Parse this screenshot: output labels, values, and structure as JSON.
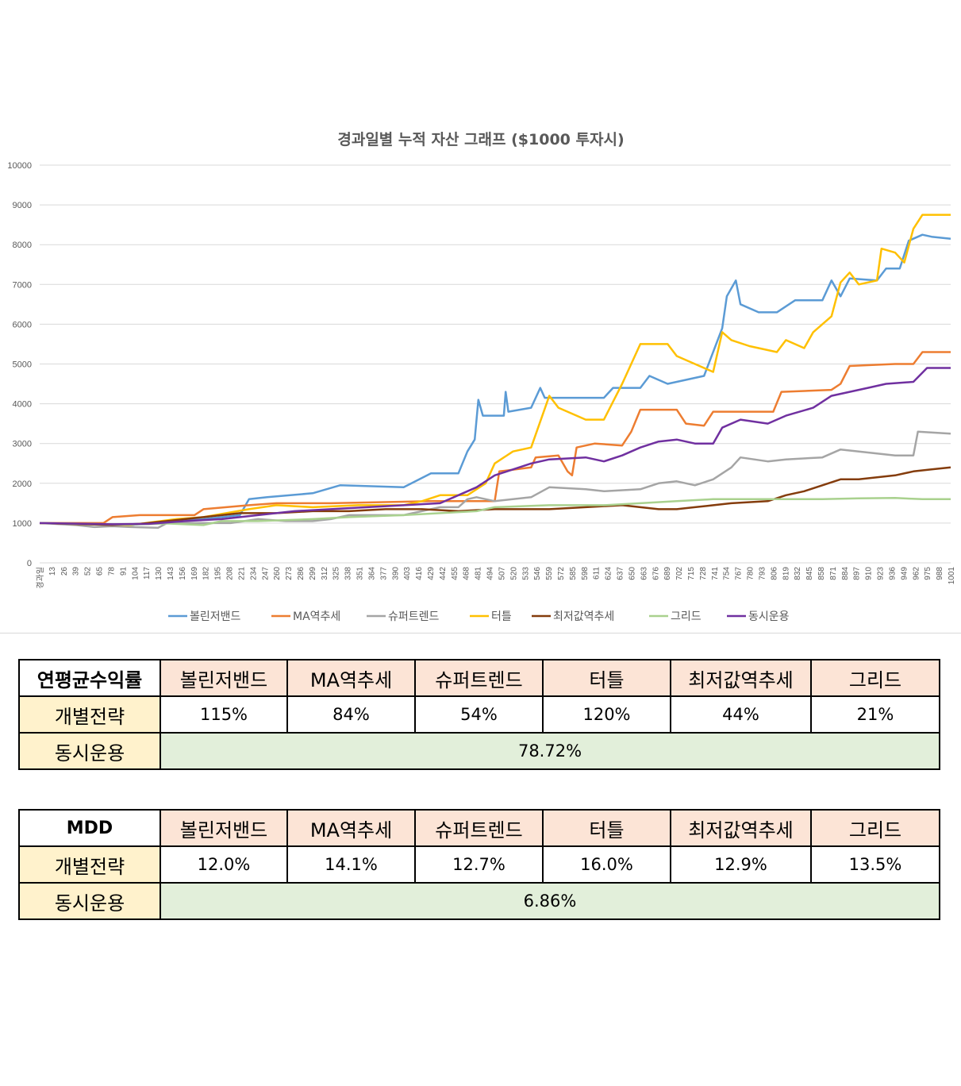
{
  "chart_data": {
    "type": "line",
    "title": "경과일별 누적 자산 그래프 ($1000 투자시)",
    "xlabel": "",
    "ylabel": "",
    "ylim": [
      0,
      10000
    ],
    "yticks": [
      0,
      1000,
      2000,
      3000,
      4000,
      5000,
      6000,
      7000,
      8000,
      9000,
      10000
    ],
    "xlim": [
      0,
      1001
    ],
    "xticks_first_label": "경과일",
    "xticks": [
      13,
      26,
      39,
      52,
      65,
      78,
      91,
      104,
      117,
      130,
      143,
      156,
      169,
      182,
      195,
      208,
      221,
      234,
      247,
      260,
      273,
      286,
      299,
      312,
      325,
      338,
      351,
      364,
      377,
      390,
      403,
      416,
      429,
      442,
      455,
      468,
      481,
      494,
      507,
      520,
      533,
      546,
      559,
      572,
      585,
      598,
      611,
      624,
      637,
      650,
      663,
      676,
      689,
      702,
      715,
      728,
      741,
      754,
      767,
      780,
      793,
      806,
      819,
      832,
      845,
      858,
      871,
      884,
      897,
      910,
      923,
      936,
      949,
      962,
      975,
      988,
      1001
    ],
    "grid": true,
    "legend_position": "bottom",
    "series": [
      {
        "name": "볼린저밴드",
        "color": "#5b9bd5",
        "points": [
          [
            0,
            1000
          ],
          [
            60,
            980
          ],
          [
            100,
            950
          ],
          [
            140,
            1050
          ],
          [
            180,
            1100
          ],
          [
            220,
            1200
          ],
          [
            230,
            1600
          ],
          [
            250,
            1650
          ],
          [
            300,
            1750
          ],
          [
            330,
            1950
          ],
          [
            400,
            1900
          ],
          [
            430,
            2250
          ],
          [
            460,
            2250
          ],
          [
            470,
            2800
          ],
          [
            478,
            3100
          ],
          [
            482,
            4100
          ],
          [
            487,
            3700
          ],
          [
            510,
            3700
          ],
          [
            512,
            4300
          ],
          [
            515,
            3800
          ],
          [
            540,
            3900
          ],
          [
            550,
            4400
          ],
          [
            555,
            4150
          ],
          [
            620,
            4150
          ],
          [
            630,
            4400
          ],
          [
            660,
            4400
          ],
          [
            670,
            4700
          ],
          [
            690,
            4500
          ],
          [
            730,
            4700
          ],
          [
            750,
            5900
          ],
          [
            755,
            6700
          ],
          [
            765,
            7100
          ],
          [
            770,
            6500
          ],
          [
            790,
            6300
          ],
          [
            810,
            6300
          ],
          [
            830,
            6600
          ],
          [
            860,
            6600
          ],
          [
            870,
            7100
          ],
          [
            880,
            6700
          ],
          [
            890,
            7150
          ],
          [
            920,
            7100
          ],
          [
            930,
            7400
          ],
          [
            945,
            7400
          ],
          [
            955,
            8100
          ],
          [
            970,
            8250
          ],
          [
            980,
            8200
          ],
          [
            1001,
            8150
          ]
        ]
      },
      {
        "name": "MA역추세",
        "color": "#ed7d31",
        "points": [
          [
            0,
            1000
          ],
          [
            70,
            1000
          ],
          [
            80,
            1150
          ],
          [
            110,
            1200
          ],
          [
            170,
            1200
          ],
          [
            180,
            1350
          ],
          [
            230,
            1450
          ],
          [
            260,
            1500
          ],
          [
            300,
            1500
          ],
          [
            320,
            1500
          ],
          [
            430,
            1550
          ],
          [
            500,
            1550
          ],
          [
            505,
            2300
          ],
          [
            540,
            2400
          ],
          [
            545,
            2650
          ],
          [
            570,
            2700
          ],
          [
            580,
            2300
          ],
          [
            585,
            2200
          ],
          [
            590,
            2900
          ],
          [
            610,
            3000
          ],
          [
            640,
            2950
          ],
          [
            650,
            3300
          ],
          [
            660,
            3850
          ],
          [
            700,
            3850
          ],
          [
            710,
            3500
          ],
          [
            730,
            3450
          ],
          [
            740,
            3800
          ],
          [
            790,
            3800
          ],
          [
            806,
            3800
          ],
          [
            815,
            4300
          ],
          [
            870,
            4350
          ],
          [
            880,
            4500
          ],
          [
            890,
            4950
          ],
          [
            940,
            5000
          ],
          [
            960,
            5000
          ],
          [
            970,
            5300
          ],
          [
            1001,
            5300
          ]
        ]
      },
      {
        "name": "슈퍼트렌드",
        "color": "#a5a5a5",
        "points": [
          [
            0,
            1000
          ],
          [
            40,
            950
          ],
          [
            60,
            900
          ],
          [
            80,
            920
          ],
          [
            100,
            900
          ],
          [
            130,
            880
          ],
          [
            140,
            1000
          ],
          [
            180,
            1000
          ],
          [
            210,
            1000
          ],
          [
            240,
            1100
          ],
          [
            270,
            1050
          ],
          [
            300,
            1050
          ],
          [
            320,
            1100
          ],
          [
            340,
            1200
          ],
          [
            400,
            1200
          ],
          [
            440,
            1400
          ],
          [
            460,
            1400
          ],
          [
            470,
            1600
          ],
          [
            480,
            1650
          ],
          [
            500,
            1550
          ],
          [
            540,
            1650
          ],
          [
            560,
            1900
          ],
          [
            600,
            1850
          ],
          [
            620,
            1800
          ],
          [
            660,
            1850
          ],
          [
            680,
            2000
          ],
          [
            700,
            2050
          ],
          [
            720,
            1950
          ],
          [
            740,
            2100
          ],
          [
            760,
            2400
          ],
          [
            770,
            2650
          ],
          [
            800,
            2550
          ],
          [
            820,
            2600
          ],
          [
            860,
            2650
          ],
          [
            880,
            2850
          ],
          [
            900,
            2800
          ],
          [
            920,
            2750
          ],
          [
            940,
            2700
          ],
          [
            960,
            2700
          ],
          [
            965,
            3300
          ],
          [
            1001,
            3250
          ]
        ]
      },
      {
        "name": "터틀",
        "color": "#ffc000",
        "points": [
          [
            0,
            1000
          ],
          [
            100,
            950
          ],
          [
            150,
            1100
          ],
          [
            180,
            1150
          ],
          [
            230,
            1350
          ],
          [
            260,
            1450
          ],
          [
            300,
            1400
          ],
          [
            350,
            1450
          ],
          [
            400,
            1450
          ],
          [
            420,
            1550
          ],
          [
            440,
            1700
          ],
          [
            470,
            1700
          ],
          [
            490,
            2000
          ],
          [
            500,
            2500
          ],
          [
            520,
            2800
          ],
          [
            540,
            2900
          ],
          [
            560,
            4200
          ],
          [
            570,
            3900
          ],
          [
            600,
            3600
          ],
          [
            620,
            3600
          ],
          [
            640,
            4500
          ],
          [
            660,
            5500
          ],
          [
            690,
            5500
          ],
          [
            700,
            5200
          ],
          [
            720,
            5000
          ],
          [
            740,
            4800
          ],
          [
            750,
            5800
          ],
          [
            760,
            5600
          ],
          [
            780,
            5450
          ],
          [
            810,
            5300
          ],
          [
            820,
            5600
          ],
          [
            840,
            5400
          ],
          [
            850,
            5800
          ],
          [
            870,
            6200
          ],
          [
            880,
            7050
          ],
          [
            890,
            7300
          ],
          [
            900,
            7000
          ],
          [
            920,
            7100
          ],
          [
            925,
            7900
          ],
          [
            940,
            7800
          ],
          [
            950,
            7550
          ],
          [
            960,
            8400
          ],
          [
            970,
            8750
          ],
          [
            1001,
            8750
          ]
        ]
      },
      {
        "name": "최저값역추세",
        "color": "#843c0c",
        "points": [
          [
            0,
            1000
          ],
          [
            80,
            950
          ],
          [
            110,
            980
          ],
          [
            140,
            1050
          ],
          [
            180,
            1150
          ],
          [
            220,
            1250
          ],
          [
            260,
            1250
          ],
          [
            300,
            1300
          ],
          [
            340,
            1300
          ],
          [
            380,
            1350
          ],
          [
            420,
            1350
          ],
          [
            460,
            1300
          ],
          [
            500,
            1350
          ],
          [
            560,
            1350
          ],
          [
            600,
            1400
          ],
          [
            640,
            1450
          ],
          [
            680,
            1350
          ],
          [
            700,
            1350
          ],
          [
            720,
            1400
          ],
          [
            760,
            1500
          ],
          [
            800,
            1550
          ],
          [
            820,
            1700
          ],
          [
            840,
            1800
          ],
          [
            860,
            1950
          ],
          [
            880,
            2100
          ],
          [
            900,
            2100
          ],
          [
            920,
            2150
          ],
          [
            940,
            2200
          ],
          [
            960,
            2300
          ],
          [
            980,
            2350
          ],
          [
            1001,
            2400
          ]
        ]
      },
      {
        "name": "그리드",
        "color": "#a9d18e",
        "points": [
          [
            0,
            1000
          ],
          [
            100,
            960
          ],
          [
            140,
            990
          ],
          [
            180,
            950
          ],
          [
            200,
            1050
          ],
          [
            240,
            1050
          ],
          [
            300,
            1100
          ],
          [
            340,
            1150
          ],
          [
            400,
            1200
          ],
          [
            440,
            1250
          ],
          [
            480,
            1300
          ],
          [
            500,
            1400
          ],
          [
            560,
            1450
          ],
          [
            620,
            1450
          ],
          [
            660,
            1500
          ],
          [
            700,
            1550
          ],
          [
            740,
            1600
          ],
          [
            800,
            1600
          ],
          [
            860,
            1600
          ],
          [
            900,
            1620
          ],
          [
            940,
            1630
          ],
          [
            970,
            1600
          ],
          [
            1001,
            1600
          ]
        ]
      },
      {
        "name": "동시운용",
        "color": "#7030a0",
        "points": [
          [
            0,
            1000
          ],
          [
            80,
            970
          ],
          [
            120,
            980
          ],
          [
            160,
            1050
          ],
          [
            200,
            1100
          ],
          [
            240,
            1200
          ],
          [
            280,
            1300
          ],
          [
            320,
            1350
          ],
          [
            360,
            1400
          ],
          [
            400,
            1450
          ],
          [
            440,
            1500
          ],
          [
            460,
            1700
          ],
          [
            480,
            1900
          ],
          [
            500,
            2200
          ],
          [
            520,
            2350
          ],
          [
            540,
            2500
          ],
          [
            560,
            2600
          ],
          [
            600,
            2650
          ],
          [
            620,
            2550
          ],
          [
            640,
            2700
          ],
          [
            660,
            2900
          ],
          [
            680,
            3050
          ],
          [
            700,
            3100
          ],
          [
            720,
            3000
          ],
          [
            740,
            3000
          ],
          [
            750,
            3400
          ],
          [
            770,
            3600
          ],
          [
            800,
            3500
          ],
          [
            820,
            3700
          ],
          [
            850,
            3900
          ],
          [
            870,
            4200
          ],
          [
            890,
            4300
          ],
          [
            910,
            4400
          ],
          [
            930,
            4500
          ],
          [
            960,
            4550
          ],
          [
            975,
            4900
          ],
          [
            1001,
            4900
          ]
        ]
      }
    ]
  },
  "returns_table": {
    "corner": "연평균수익률",
    "headers": [
      "볼린저밴드",
      "MA역추세",
      "슈퍼트렌드",
      "터틀",
      "최저값역추세",
      "그리드"
    ],
    "row_individual_label": "개별전략",
    "individual": [
      "115%",
      "84%",
      "54%",
      "120%",
      "44%",
      "21%"
    ],
    "row_combined_label": "동시운용",
    "combined": "78.72%"
  },
  "mdd_table": {
    "corner": "MDD",
    "headers": [
      "볼린저밴드",
      "MA역추세",
      "슈퍼트렌드",
      "터틀",
      "최저값역추세",
      "그리드"
    ],
    "row_individual_label": "개별전략",
    "individual": [
      "12.0%",
      "14.1%",
      "12.7%",
      "16.0%",
      "12.9%",
      "13.5%"
    ],
    "row_combined_label": "동시운용",
    "combined": "6.86%"
  }
}
